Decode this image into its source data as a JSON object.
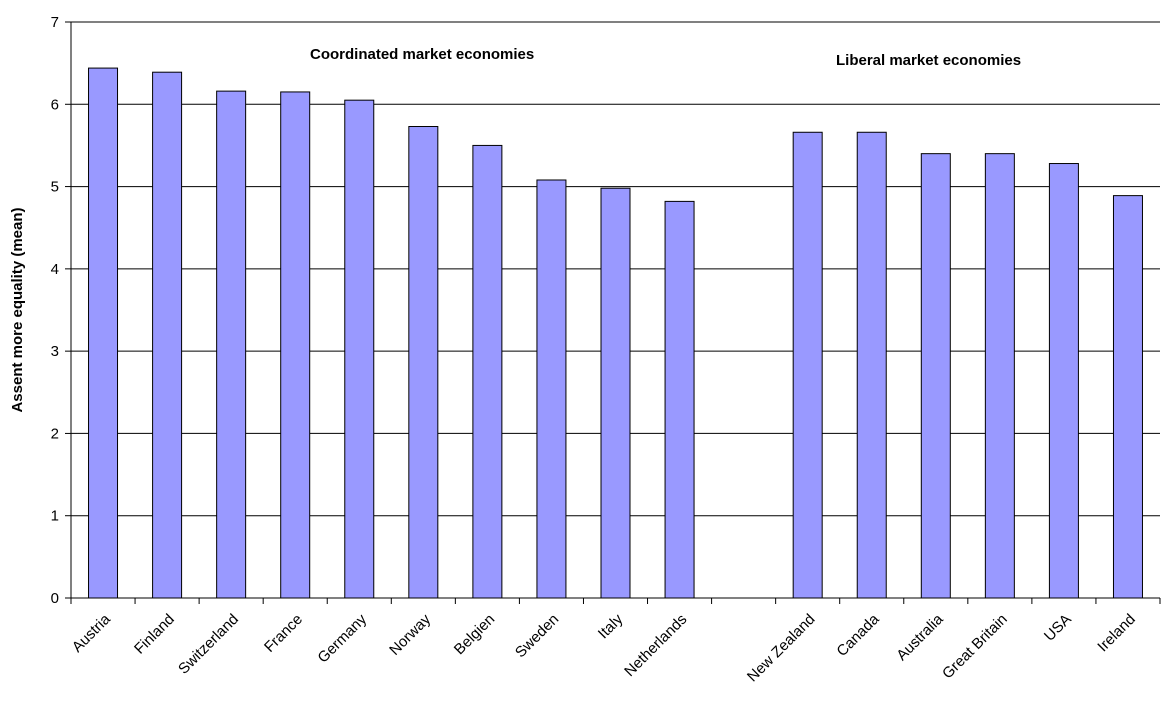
{
  "chart_data": {
    "type": "bar",
    "ylabel": "Assent more equality (mean)",
    "xlabel": "",
    "ylim": [
      0,
      7
    ],
    "yticks": [
      0,
      1,
      2,
      3,
      4,
      5,
      6,
      7
    ],
    "grid": true,
    "categories": [
      "Austria",
      "Finland",
      "Switzerland",
      "France",
      "Germany",
      "Norway",
      "Belgien",
      "Sweden",
      "Italy",
      "Netherlands",
      "",
      "New Zealand",
      "Canada",
      "Australia",
      "Great Britain",
      "USA",
      "Ireland"
    ],
    "values": [
      6.44,
      6.39,
      6.16,
      6.15,
      6.05,
      5.73,
      5.5,
      5.08,
      4.98,
      4.82,
      null,
      5.66,
      5.66,
      5.4,
      5.4,
      5.28,
      4.89
    ],
    "annotations": [
      "Coordinated market economies",
      "Liberal market economies"
    ],
    "colors": {
      "bar_fill": "#9999ff",
      "bar_stroke": "#000000",
      "grid": "#000000"
    }
  }
}
